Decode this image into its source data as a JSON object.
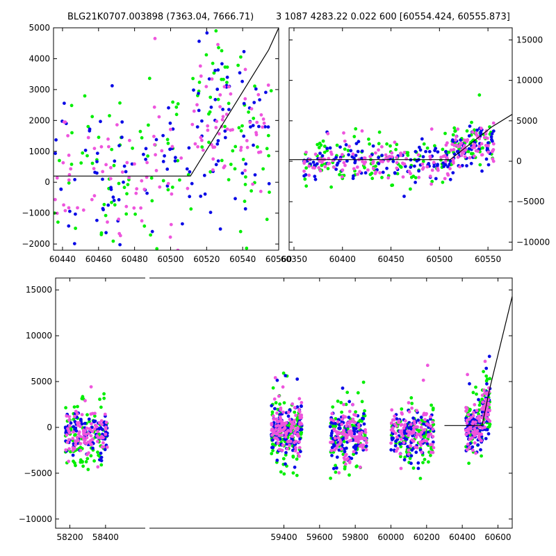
{
  "figure": {
    "title_left": "BLG21K0707.003898 (7363.04, 7666.71)",
    "title_right": "3 1087 4283.22 0.022 600 [60554.424, 60555.873]"
  },
  "colors": {
    "series_a": "#00ee00",
    "series_b": "#0a0ae6",
    "series_c": "#ee55dd",
    "model": "#000000"
  },
  "chart_data": [
    {
      "name": "zoom-recent",
      "type": "scatter",
      "xlim": [
        60435,
        60560
      ],
      "ylim": [
        -2200,
        5000
      ],
      "xticks": [
        60440,
        60460,
        60480,
        60500,
        60520,
        60540,
        60560
      ],
      "yticks": [
        -2000,
        -1000,
        0,
        1000,
        2000,
        3000,
        4000,
        5000
      ],
      "yaxis_side": "left",
      "grid": false,
      "model": {
        "x": [
          60435,
          60511,
          60554.4,
          60560
        ],
        "y": [
          200,
          200,
          4283,
          5000
        ]
      },
      "clusters": [
        {
          "x0": 60435,
          "x1": 60512,
          "ymed": 200,
          "spread": 1300,
          "n": 70
        },
        {
          "x0": 60512,
          "x1": 60556,
          "ymed": 1800,
          "spread": 1400,
          "n": 60
        }
      ]
    },
    {
      "name": "season-2024",
      "type": "scatter",
      "xlim": [
        60345,
        60575
      ],
      "ylim": [
        -11000,
        16500
      ],
      "xticks": [
        60350,
        60400,
        60450,
        60500,
        60550
      ],
      "yticks": [
        -10000,
        -5000,
        0,
        5000,
        10000,
        15000
      ],
      "yaxis_side": "right",
      "grid": false,
      "model": {
        "x": [
          60345,
          60511,
          60554.4,
          60575
        ],
        "y": [
          200,
          200,
          4283,
          5800
        ]
      },
      "clusters": [
        {
          "x0": 60360,
          "x1": 60512,
          "ymed": 0,
          "spread": 1200,
          "n": 110
        },
        {
          "x0": 60512,
          "x1": 60556,
          "ymed": 1500,
          "spread": 1500,
          "n": 60
        }
      ]
    },
    {
      "name": "full-light-curve",
      "type": "scatter",
      "xlim": [
        58120,
        60680
      ],
      "ylim": [
        -11000,
        16300
      ],
      "xticks": [
        58200,
        58400,
        59400,
        59600,
        59800,
        60000,
        60200,
        60400,
        60600
      ],
      "yticks": [
        -10000,
        -5000,
        0,
        5000,
        10000,
        15000
      ],
      "yaxis_side": "left",
      "grid": false,
      "broken_axis": true,
      "model": {
        "x": [
          60300,
          60511,
          60554.4,
          60680
        ],
        "y": [
          200,
          200,
          4283,
          14300
        ]
      },
      "seasons": [
        {
          "x0": 58175,
          "x1": 58410,
          "ymed": -800,
          "spread": 1500,
          "n": 90
        },
        {
          "x0": 59330,
          "x1": 59500,
          "ymed": -500,
          "spread": 1600,
          "n": 110
        },
        {
          "x0": 59660,
          "x1": 59865,
          "ymed": -900,
          "spread": 1500,
          "n": 100
        },
        {
          "x0": 60000,
          "x1": 60240,
          "ymed": -700,
          "spread": 1500,
          "n": 100
        },
        {
          "x0": 60420,
          "x1": 60512,
          "ymed": 0,
          "spread": 1300,
          "n": 60
        },
        {
          "x0": 60512,
          "x1": 60556,
          "ymed": 1800,
          "spread": 1500,
          "n": 40
        }
      ]
    }
  ]
}
